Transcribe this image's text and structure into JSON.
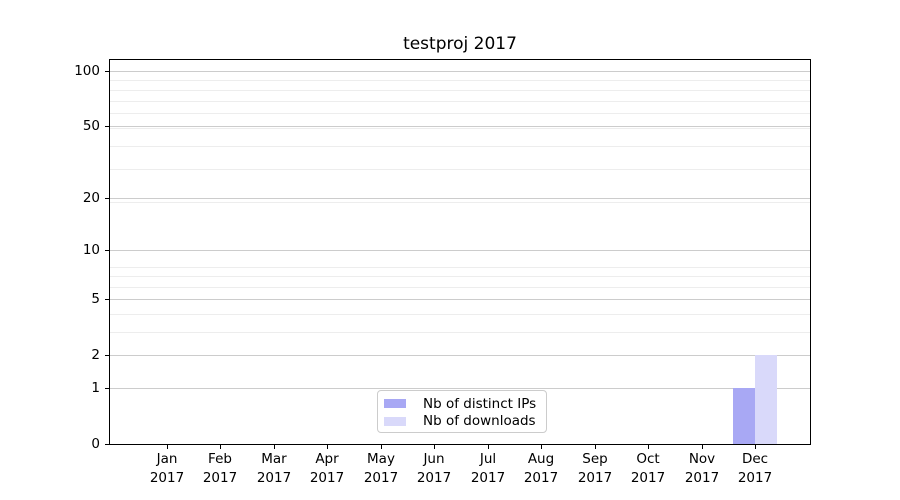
{
  "figure_title": "testproj 2017",
  "chart_data": {
    "type": "bar",
    "title": "testproj 2017",
    "categories": [
      "Jan",
      "Feb",
      "Mar",
      "Apr",
      "May",
      "Jun",
      "Jul",
      "Aug",
      "Sep",
      "Oct",
      "Nov",
      "Dec"
    ],
    "category_year": "2017",
    "series": [
      {
        "name": "Nb of distinct IPs",
        "color": "#a8a8f4",
        "values": [
          0,
          0,
          0,
          0,
          0,
          0,
          0,
          0,
          0,
          0,
          0,
          1
        ]
      },
      {
        "name": "Nb of downloads",
        "color": "#d9d9fa",
        "values": [
          0,
          0,
          0,
          0,
          0,
          0,
          0,
          0,
          0,
          0,
          0,
          2
        ]
      }
    ],
    "xlabel": "",
    "ylabel": "",
    "yscale": "log1p",
    "yticks": [
      0,
      1,
      2,
      5,
      10,
      20,
      50,
      100
    ],
    "yticks_minor_log1p": [
      2,
      3,
      4,
      5,
      6,
      7,
      8,
      9,
      20,
      30,
      40,
      50,
      60,
      70,
      80,
      90
    ],
    "ylim": [
      0,
      115
    ],
    "grid": "horizontal",
    "legend_position": "lower center",
    "colors": {
      "major_grid": "#cccccc",
      "minor_grid": "#ededed",
      "axis": "#000000",
      "text": "#000000",
      "background": "#ffffff"
    }
  }
}
